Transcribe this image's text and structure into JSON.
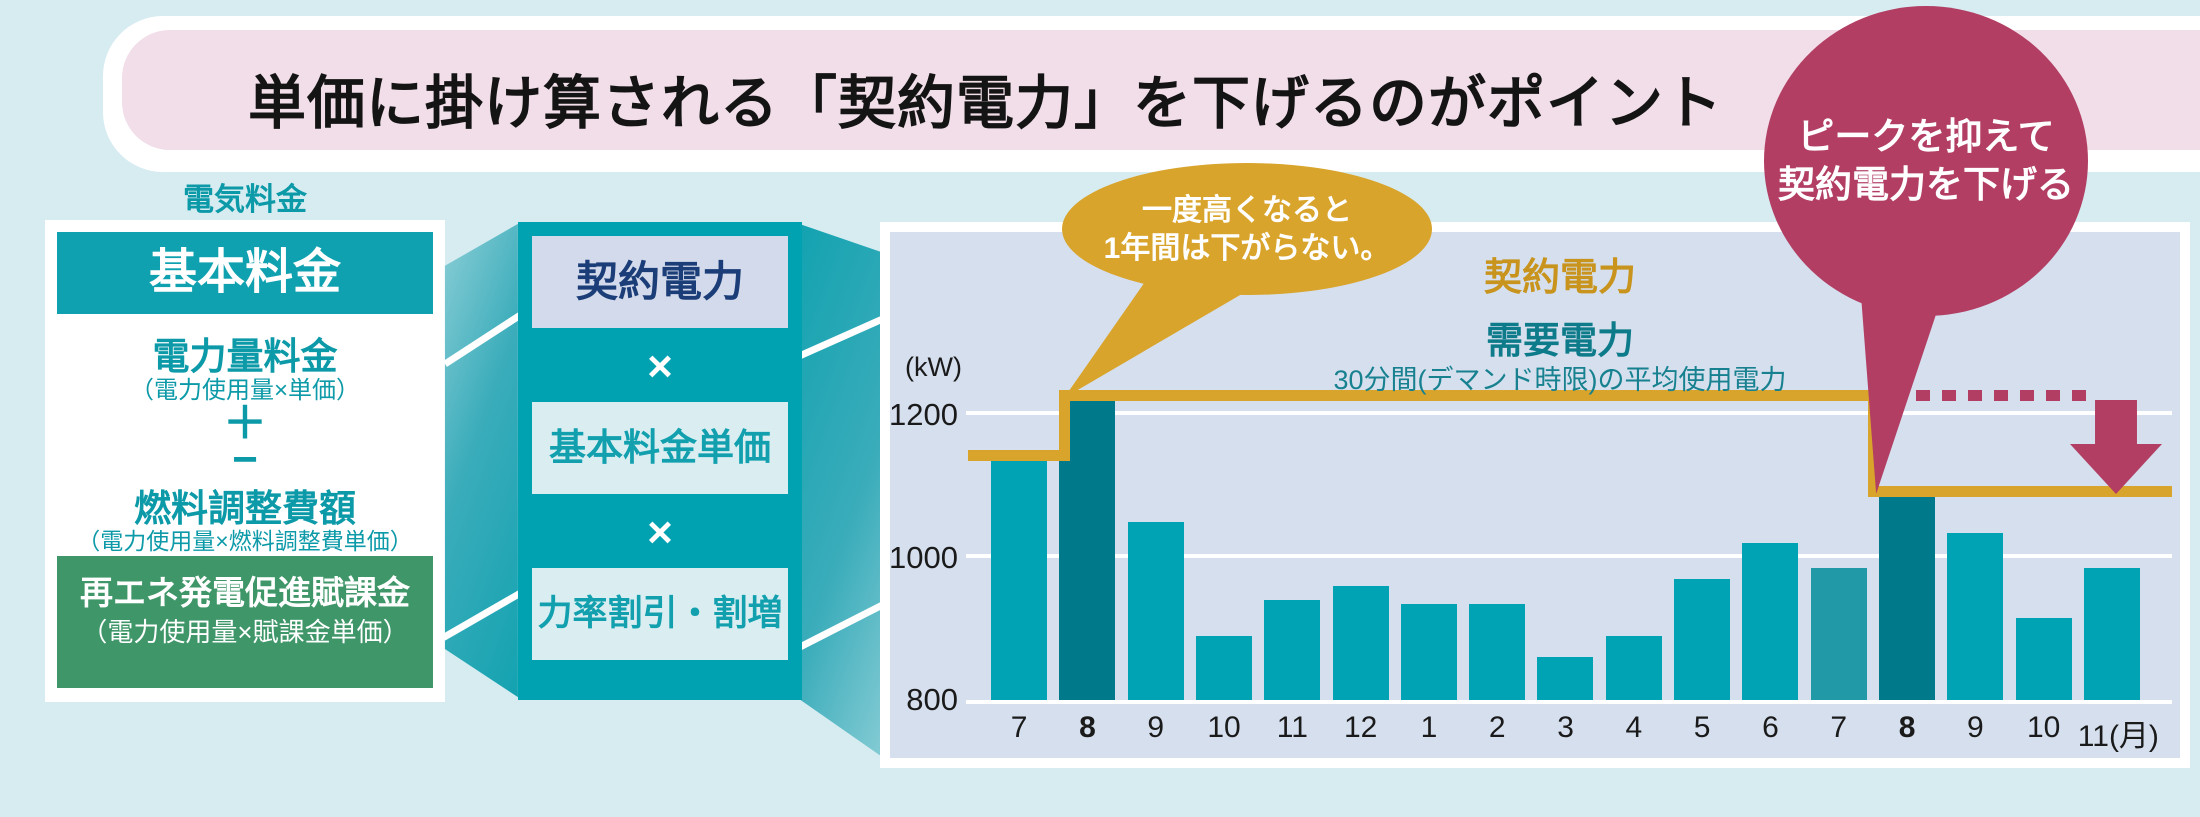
{
  "title": "単価に掛け算される「契約電力」を下げるのがポイント",
  "bubbles": {
    "peak_note": {
      "line1": "ピークを抑えて",
      "line2": "契約電力を下げる",
      "color": "#b23e63"
    },
    "sticky_note": {
      "line1": "一度高くなると",
      "line2": "1年間は下がらない。",
      "color": "#d9a42b"
    }
  },
  "left_panel": {
    "heading": "電気料金",
    "basic_charge": "基本料金",
    "energy_charge": "電力量料金",
    "energy_charge_formula": "（電力使用量×単価）",
    "plus_symbol": "＋",
    "minus_symbol": "−",
    "fuel_adjustment": "燃料調整費額",
    "fuel_adjustment_formula": "（電力使用量×燃料調整費単価）",
    "renewable_levy": "再エネ発電促進賦課金",
    "renewable_levy_formula": "（電力使用量×賦課金単価）"
  },
  "formula_panel": {
    "contract_power": "契約電力",
    "multiply_1": "×",
    "basic_unit_price": "基本料金単価",
    "multiply_2": "×",
    "power_factor": "力率割引・割増"
  },
  "chart_data": {
    "type": "bar",
    "unit_label": "(kW)",
    "contract_line_label": "契約電力",
    "demand_label": "需要電力",
    "demand_sublabel": "30分間(デマンド時限)の平均使用電力",
    "categories": [
      "7",
      "8",
      "9",
      "10",
      "11",
      "12",
      "1",
      "2",
      "3",
      "4",
      "5",
      "6",
      "7",
      "8",
      "9",
      "10",
      "11(月)"
    ],
    "values": [
      1135,
      1220,
      1050,
      890,
      940,
      960,
      935,
      935,
      860,
      890,
      970,
      1020,
      985,
      1085,
      1035,
      915,
      985
    ],
    "bar_styles": [
      "normal",
      "peak",
      "normal",
      "normal",
      "normal",
      "normal",
      "normal",
      "normal",
      "normal",
      "normal",
      "normal",
      "normal",
      "muted",
      "peak",
      "normal",
      "normal",
      "normal"
    ],
    "ylim": [
      800,
      1260
    ],
    "yticks": [
      1200,
      1000,
      800
    ],
    "grid": true,
    "contract_line": {
      "segments": [
        {
          "from": 0,
          "to": 1,
          "level": 1135
        },
        {
          "from": 1,
          "to": 13,
          "level": 1220
        },
        {
          "from": 13,
          "to": 17,
          "level": 1085
        }
      ],
      "old_level_dashed": {
        "from": 13,
        "level": 1220
      }
    },
    "colors": {
      "bar": "#00a3b3",
      "bar_peak": "#00798b",
      "bar_muted": "#2299a7",
      "gold": "#d9a42b",
      "gold_text": "#c8941d",
      "maroon": "#b23e63",
      "plot_bg": "#d5dfee",
      "grid": "#ffffff",
      "axis_text": "#1a1a1a"
    }
  },
  "palette": {
    "page_bg": "#d7ecf1",
    "pink_band": "#f1dee8",
    "panel_teal": "#00a2b2",
    "teal_header": "#0fa1af",
    "teal_text": "#0d9aa8",
    "green_box": "#3f9769",
    "navy": "#1c3e78"
  }
}
